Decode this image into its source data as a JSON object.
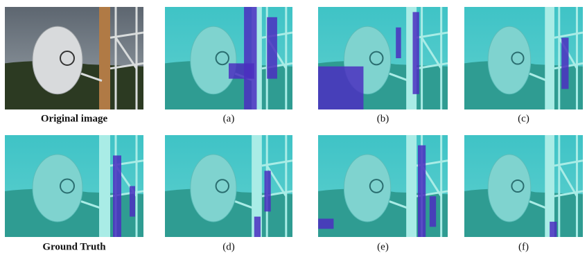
{
  "figure": {
    "panels": [
      {
        "caption": "Original image"
      },
      {
        "caption": "(a)"
      },
      {
        "caption": "(b)"
      },
      {
        "caption": "(c)"
      },
      {
        "caption": "Ground Truth"
      },
      {
        "caption": "(d)"
      },
      {
        "caption": "(e)"
      },
      {
        "caption": "(f)"
      }
    ]
  }
}
